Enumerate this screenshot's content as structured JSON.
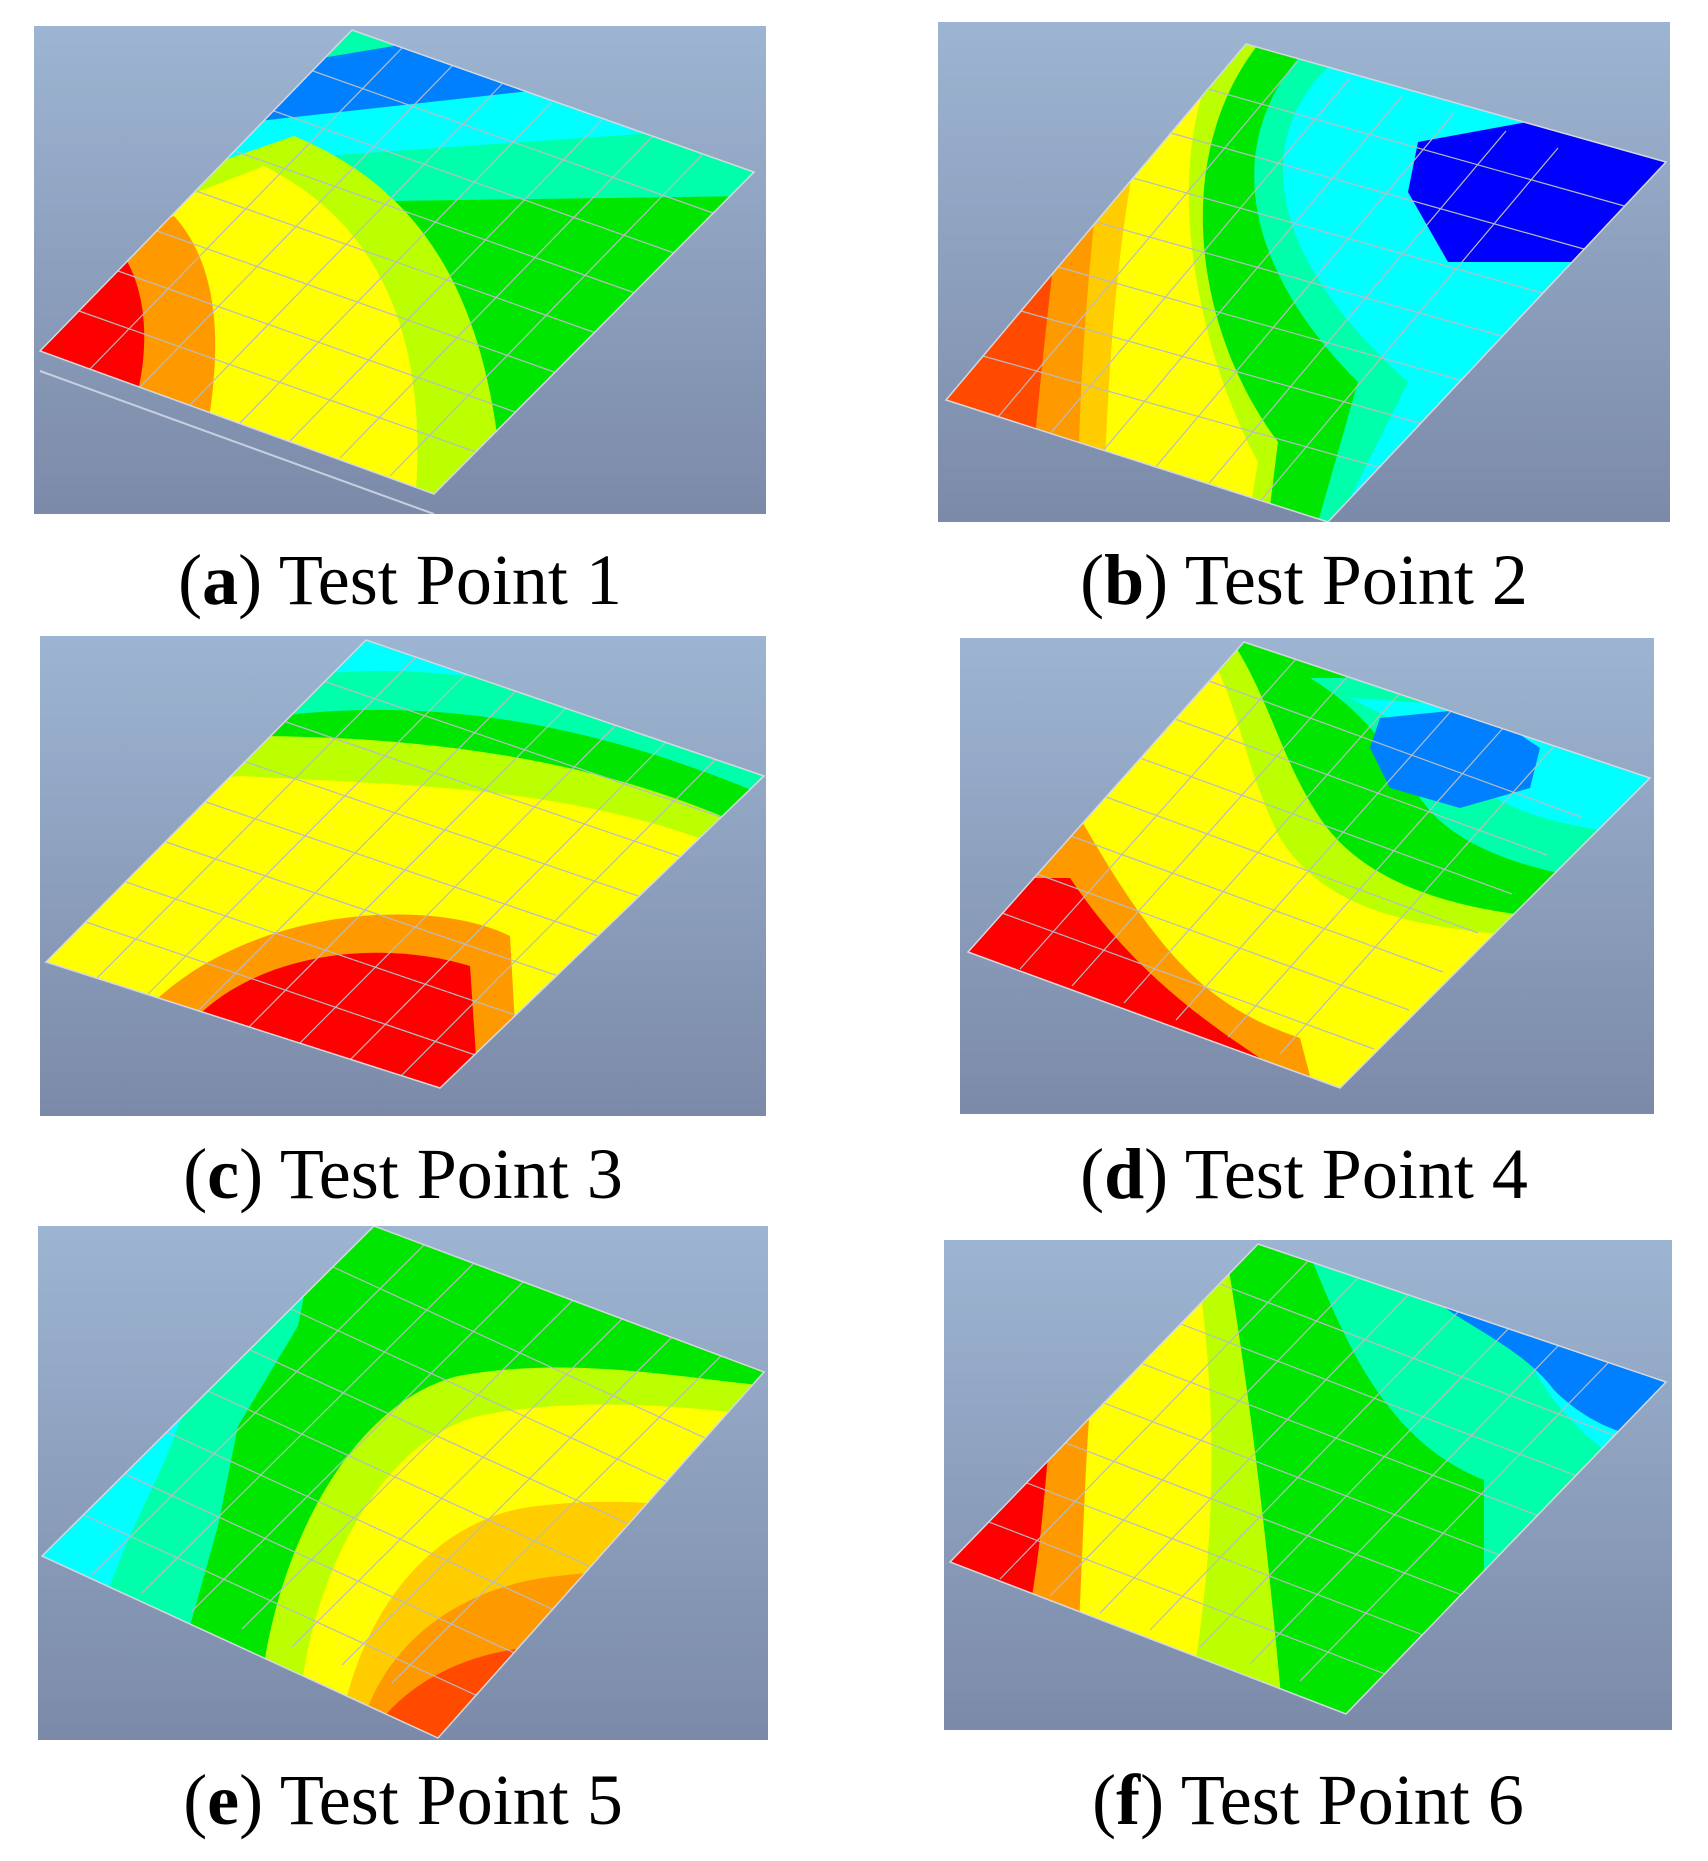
{
  "figure": {
    "panels": [
      {
        "letter": "a",
        "label": "Test Point 1"
      },
      {
        "letter": "b",
        "label": "Test Point 2"
      },
      {
        "letter": "c",
        "label": "Test Point 3"
      },
      {
        "letter": "d",
        "label": "Test Point 4"
      },
      {
        "letter": "e",
        "label": "Test Point 5"
      },
      {
        "letter": "f",
        "label": "Test Point 6"
      }
    ],
    "colors": {
      "red": "#ff0000",
      "red_orange": "#ff4a00",
      "orange": "#ff9900",
      "orange_yellow": "#ffcc00",
      "yellow": "#ffff00",
      "yellow_green": "#bbff00",
      "green": "#00e600",
      "aqua_green": "#00ffaa",
      "cyan": "#00ffff",
      "sky_blue": "#0080ff",
      "blue": "#0000ff",
      "background_top": "#9db5d2",
      "background_bottom": "#7b8aa8"
    }
  }
}
